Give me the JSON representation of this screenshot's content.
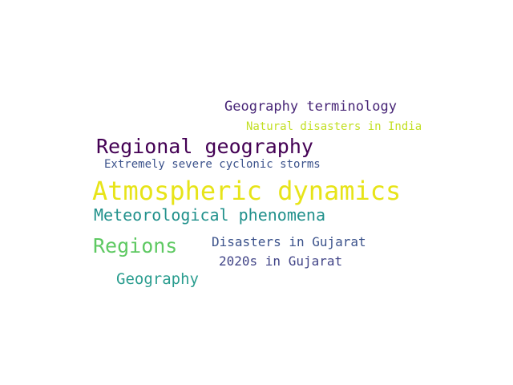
{
  "words": [
    {
      "text": "Geography terminology",
      "color": "#482677"
    },
    {
      "text": "Natural disasters in India",
      "color": "#c2df23"
    },
    {
      "text": "Regional geography",
      "color": "#440154"
    },
    {
      "text": "Extremely severe cyclonic storms",
      "color": "#3b528b"
    },
    {
      "text": "Atmospheric dynamics",
      "color": "#e7e419"
    },
    {
      "text": "Meteorological phenomena",
      "color": "#21918c"
    },
    {
      "text": "Regions",
      "color": "#5ec962"
    },
    {
      "text": "Disasters in Gujarat",
      "color": "#3b528b"
    },
    {
      "text": "2020s in Gujarat",
      "color": "#414487"
    },
    {
      "text": "Geography",
      "color": "#2a9d8f"
    }
  ]
}
